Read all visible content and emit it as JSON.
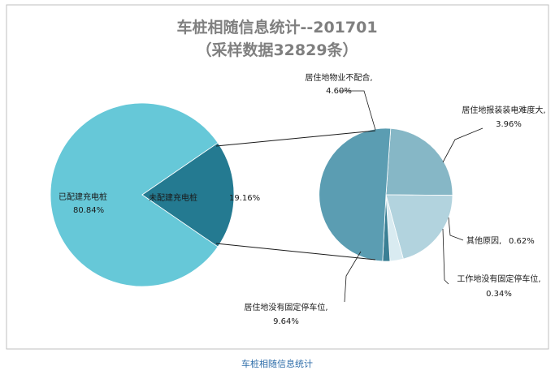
{
  "chart_data": {
    "type": "pie",
    "subtype": "pie-of-pie",
    "title": "车桩相随信息统计--201701",
    "subtitle": "（采样数据32829条）",
    "main_slices": [
      {
        "label": "已配建充电桩",
        "value_text": "80.84%",
        "value": 80.84,
        "color": "#66c8d8"
      },
      {
        "label": "未配建充电桩",
        "value_text": "19.16%",
        "value": 19.16,
        "color": "#247a91"
      }
    ],
    "secondary_slices": [
      {
        "label": "居住地物业不配合,",
        "value_text": "4.60%",
        "value": 4.6,
        "color": "#86b7c6"
      },
      {
        "label": "居住地报装装电难度大,",
        "value_text": "3.96%",
        "value": 3.96,
        "color": "#b2d3de"
      },
      {
        "label": "其他原因,",
        "value_text": "0.62%",
        "value": 0.62,
        "color": "#d9ebf1"
      },
      {
        "label": "工作地没有固定停车位,",
        "value_text": "0.34%",
        "value": 0.34,
        "color": "#3a7f94"
      },
      {
        "label": "居住地没有固定停车位,",
        "value_text": "9.64%",
        "value": 9.64,
        "color": "#5b9db2"
      }
    ],
    "legend": "none"
  },
  "caption": "车桩相随信息统计"
}
